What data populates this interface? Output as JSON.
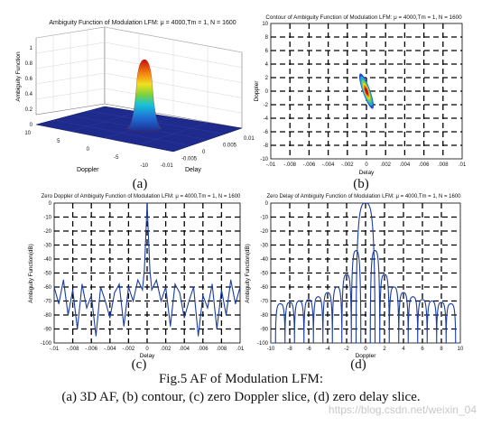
{
  "panels": {
    "a": {
      "title": "Ambiguity Function of Modulation LFM: μ = 4000,Tm = 1, N = 1600",
      "zlabel": "Ambiguity Function",
      "xlabel": "Doppler",
      "ylabel": "Delay",
      "zticks": [
        "0",
        "0.2",
        "0.4",
        "0.6",
        "0.8",
        "1"
      ],
      "doppler_ticks": [
        "10",
        "5",
        "0",
        "-5",
        "-10"
      ],
      "delay_ticks": [
        "-0.01",
        "-0.005",
        "0",
        "0.005",
        "0.01"
      ],
      "label": "(a)"
    },
    "b": {
      "title": "Contour of Ambiguity Function of Modulation LFM: μ = 4000,Tm = 1, N = 1600",
      "xlabel": "Delay",
      "ylabel": "Doppler",
      "label": "(b)"
    },
    "c": {
      "title": "Zero Doppler of Ambiguity Function of Modulation LFM: μ = 4000,Tm = 1, N = 1600",
      "xlabel": "Delay",
      "ylabel": "Ambiguity Function(dB)",
      "label": "(c)"
    },
    "d": {
      "title": "Zero Delay of Ambiguity Function of Modulation LFM: μ = 4000,Tm = 1, N = 1600",
      "xlabel": "Doppler",
      "ylabel": "Ambiguity Function(dB)",
      "label": "(d)"
    }
  },
  "caption": {
    "line1": "Fig.5 AF of Modulation LFM:",
    "line2": "(a) 3D AF, (b) contour, (c) zero Doppler slice, (d) zero delay slice."
  },
  "watermark": "https://blog.csdn.net/weixin_04",
  "colors": {
    "line": "#1a3d9e",
    "surface_base": "#1e2a8c",
    "grid": "#000000"
  },
  "chart_data": [
    {
      "type": "area",
      "title": "Ambiguity Function of Modulation LFM: μ = 4000,Tm = 1, N = 1600",
      "xlabel": "Delay",
      "ylabel": "Doppler",
      "zlabel": "Ambiguity Function",
      "xlim": [
        -0.01,
        0.01
      ],
      "ylim": [
        -10,
        10
      ],
      "zlim": [
        0,
        1
      ],
      "peak": {
        "x": 0,
        "y": 0,
        "z": 1
      }
    },
    {
      "type": "scatter",
      "title": "Contour of Ambiguity Function of Modulation LFM: μ = 4000,Tm = 1, N = 1600",
      "xlabel": "Delay",
      "ylabel": "Doppler",
      "xlim": [
        -0.01,
        0.01
      ],
      "ylim": [
        -10,
        10
      ],
      "xticks": [
        -0.01,
        -0.008,
        -0.006,
        -0.004,
        -0.002,
        0,
        0.002,
        0.004,
        0.006,
        0.008,
        0.01
      ],
      "yticks": [
        -10,
        -8,
        -6,
        -4,
        -2,
        0,
        2,
        4,
        6,
        8,
        10
      ],
      "grid": true,
      "ridge": {
        "x": [
          0.0006,
          -0.0006
        ],
        "y": [
          -2.4,
          2.4
        ]
      }
    },
    {
      "type": "line",
      "title": "Zero Doppler of Ambiguity Function of Modulation LFM: μ = 4000,Tm = 1, N = 1600",
      "xlabel": "Delay",
      "ylabel": "Ambiguity Function(dB)",
      "xlim": [
        -0.01,
        0.01
      ],
      "ylim": [
        -100,
        0
      ],
      "xticks": [
        -0.01,
        -0.008,
        -0.006,
        -0.004,
        -0.002,
        0,
        0.002,
        0.004,
        0.006,
        0.008,
        0.01
      ],
      "yticks": [
        0,
        -10,
        -20,
        -30,
        -40,
        -50,
        -60,
        -70,
        -80,
        -90,
        -100
      ],
      "grid": true,
      "x": [
        -0.01,
        -0.0095,
        -0.009,
        -0.0085,
        -0.008,
        -0.0075,
        -0.007,
        -0.0065,
        -0.006,
        -0.0055,
        -0.005,
        -0.0045,
        -0.004,
        -0.0035,
        -0.003,
        -0.0025,
        -0.002,
        -0.0015,
        -0.001,
        -0.0005,
        -0.0003,
        -0.00015,
        0,
        0.00015,
        0.0003,
        0.0005,
        0.001,
        0.0015,
        0.002,
        0.0025,
        0.003,
        0.0035,
        0.004,
        0.0045,
        0.005,
        0.0055,
        0.006,
        0.0065,
        0.007,
        0.0075,
        0.008,
        0.0085,
        0.009,
        0.0095,
        0.01
      ],
      "y": [
        -60,
        -72,
        -55,
        -80,
        -62,
        -90,
        -58,
        -75,
        -66,
        -95,
        -60,
        -70,
        -82,
        -64,
        -58,
        -88,
        -60,
        -70,
        -55,
        -62,
        -48,
        -25,
        0,
        -25,
        -48,
        -62,
        -55,
        -70,
        -60,
        -88,
        -58,
        -64,
        -82,
        -70,
        -60,
        -95,
        -66,
        -75,
        -58,
        -90,
        -62,
        -80,
        -55,
        -72,
        -60
      ]
    },
    {
      "type": "line",
      "title": "Zero Delay of Ambiguity Function of Modulation LFM: μ = 4000,Tm = 1, N = 1600",
      "xlabel": "Doppler",
      "ylabel": "Ambiguity Function(dB)",
      "xlim": [
        -10,
        10
      ],
      "ylim": [
        -100,
        0
      ],
      "xticks": [
        -10,
        -8,
        -6,
        -4,
        -2,
        0,
        2,
        4,
        6,
        8,
        10
      ],
      "yticks": [
        0,
        -10,
        -20,
        -30,
        -40,
        -50,
        -60,
        -70,
        -80,
        -90,
        -100
      ],
      "grid": true,
      "sidelobe_peaks": [
        {
          "x": -9,
          "y": -72
        },
        {
          "x": -8,
          "y": -71
        },
        {
          "x": -7,
          "y": -70
        },
        {
          "x": -6,
          "y": -69
        },
        {
          "x": -5,
          "y": -67
        },
        {
          "x": -4,
          "y": -64
        },
        {
          "x": -3,
          "y": -60
        },
        {
          "x": -2,
          "y": -51
        },
        {
          "x": -1,
          "y": -34
        },
        {
          "x": 0,
          "y": 0
        },
        {
          "x": 1,
          "y": -34
        },
        {
          "x": 2,
          "y": -51
        },
        {
          "x": 3,
          "y": -60
        },
        {
          "x": 4,
          "y": -64
        },
        {
          "x": 5,
          "y": -67
        },
        {
          "x": 6,
          "y": -69
        },
        {
          "x": 7,
          "y": -70
        },
        {
          "x": 8,
          "y": -71
        },
        {
          "x": 9,
          "y": -72
        }
      ],
      "nulls_y": -100
    }
  ]
}
